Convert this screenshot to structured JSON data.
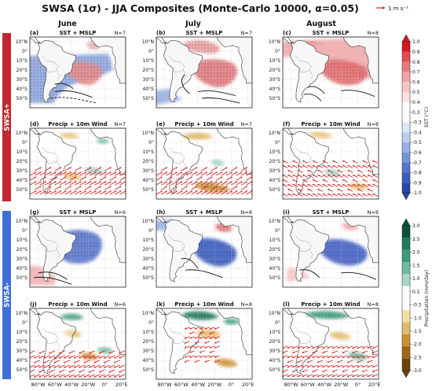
{
  "title": "SWSA (1σ) - JJA Composites (Monte-Carlo 10000, α=0.05)",
  "reference_vector": "1 m s⁻¹",
  "columns": [
    "June",
    "July",
    "August"
  ],
  "rows": [
    {
      "label": "SWSA+",
      "color": "#c0282d"
    },
    {
      "label": "SWSA-",
      "color": "#3f6ed8"
    }
  ],
  "lat_ticks": [
    "10°N",
    "0°",
    "10°S",
    "20°S",
    "30°S",
    "40°S",
    "50°S"
  ],
  "lon_ticks": [
    "80°W",
    "60°W",
    "40°W",
    "20°W",
    "0°",
    "20°E"
  ],
  "panels": [
    {
      "letter": "(a)",
      "kind": "SST + MSLP",
      "n": "N=7"
    },
    {
      "letter": "(b)",
      "kind": "SST + MSLP",
      "n": "N=7"
    },
    {
      "letter": "(c)",
      "kind": "SST + MSLP",
      "n": "N=8"
    },
    {
      "letter": "(d)",
      "kind": "Precip + 10m Wind",
      "n": "N=7"
    },
    {
      "letter": "(e)",
      "kind": "Precip + 10m Wind",
      "n": "N=7"
    },
    {
      "letter": "(f)",
      "kind": "Precip + 10m Wind",
      "n": "N=8"
    },
    {
      "letter": "(g)",
      "kind": "SST + MSLP",
      "n": "N=6"
    },
    {
      "letter": "(h)",
      "kind": "SST + MSLP",
      "n": "N=8"
    },
    {
      "letter": "(i)",
      "kind": "SST + MSLP",
      "n": "N=8"
    },
    {
      "letter": "(j)",
      "kind": "Precip + 10m Wind",
      "n": "N=6"
    },
    {
      "letter": "(k)",
      "kind": "Precip + 10m Wind",
      "n": "N=8"
    },
    {
      "letter": "(l)",
      "kind": "Precip + 10m Wind",
      "n": "N=8"
    }
  ],
  "colorbars": [
    {
      "label": "SST (°C)",
      "ticks": [
        "1.0",
        "0.9",
        "0.8",
        "0.7",
        "0.6",
        "0.5",
        "0.4",
        "0.3",
        "-0.3",
        "-0.4",
        "-0.5",
        "-0.6",
        "-0.7",
        "-0.8",
        "-0.9",
        "-1.0"
      ],
      "colors": [
        "#d7191c",
        "#e34a4e",
        "#ec7a7c",
        "#f3a3a4",
        "#f8c6c6",
        "#fbe0e0",
        "#ffffff",
        "#ffffff",
        "#dde6f7",
        "#bccdef",
        "#98b0e4",
        "#7693d9",
        "#5575cd",
        "#3a5bbe",
        "#2a44a8"
      ]
    },
    {
      "label": "Precipitation (mm/day)",
      "ticks": [
        "3.0",
        "2.5",
        "2.0",
        "1.5",
        "1.0",
        "0.5",
        "-0.5",
        "-1.0",
        "-1.5",
        "-2.0",
        "-2.5",
        "-3.0"
      ],
      "colors": [
        "#0b4f3c",
        "#1f7a5d",
        "#3d9c7c",
        "#6dbba0",
        "#a6d8c6",
        "#ffffff",
        "#ffffff",
        "#f2dca8",
        "#e2bb6a",
        "#c99235",
        "#9e6614",
        "#6e4207"
      ]
    }
  ]
}
